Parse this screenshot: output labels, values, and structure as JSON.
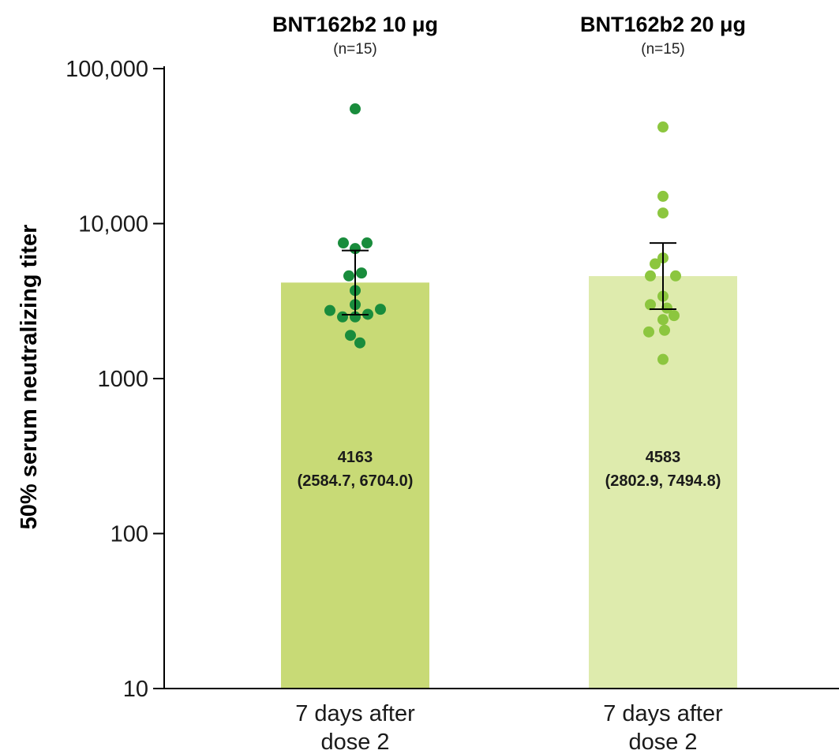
{
  "chart_data": {
    "type": "bar",
    "yscale": "log",
    "ylim": [
      10,
      100000
    ],
    "yticks": [
      {
        "value": 10,
        "label": "10"
      },
      {
        "value": 100,
        "label": "100"
      },
      {
        "value": 1000,
        "label": "1000"
      },
      {
        "value": 10000,
        "label": "10,000"
      },
      {
        "value": 100000,
        "label": "100,000"
      }
    ],
    "ylabel": "50% serum neutralizing titer",
    "grid": false,
    "legend": "none",
    "groups": [
      {
        "title": "BNT162b2 10 μg",
        "n_label": "(n=15)",
        "category_line1": "7 days after",
        "category_line2": "dose 2",
        "value": 4163,
        "ci": [
          2584.7,
          6704.0
        ],
        "value_label": "4163",
        "ci_label": "(2584.7, 6704.0)",
        "bar_color": "#c8da76",
        "point_color": "#198c3c",
        "points": [
          {
            "y": 55000,
            "dx": 0
          },
          {
            "y": 7500,
            "dx": -0.15
          },
          {
            "y": 7500,
            "dx": 0.15
          },
          {
            "y": 6900,
            "dx": 0
          },
          {
            "y": 4800,
            "dx": 0.08
          },
          {
            "y": 4600,
            "dx": -0.08
          },
          {
            "y": 3700,
            "dx": 0
          },
          {
            "y": 3000,
            "dx": 0
          },
          {
            "y": 2800,
            "dx": 0.32
          },
          {
            "y": 2750,
            "dx": -0.32
          },
          {
            "y": 2600,
            "dx": 0.16
          },
          {
            "y": 2500,
            "dx": -0.16
          },
          {
            "y": 2500,
            "dx": 0
          },
          {
            "y": 1900,
            "dx": -0.06
          },
          {
            "y": 1700,
            "dx": 0.06
          }
        ]
      },
      {
        "title": "BNT162b2 20 μg",
        "n_label": "(n=15)",
        "category_line1": "7 days after",
        "category_line2": "dose 2",
        "value": 4583,
        "ci": [
          2802.9,
          7494.8
        ],
        "value_label": "4583",
        "ci_label": "(2802.9, 7494.8)",
        "bar_color": "#deebad",
        "point_color": "#8cc63f",
        "points": [
          {
            "y": 42000,
            "dx": 0
          },
          {
            "y": 15000,
            "dx": 0
          },
          {
            "y": 11700,
            "dx": 0
          },
          {
            "y": 6000,
            "dx": 0
          },
          {
            "y": 5500,
            "dx": -0.1
          },
          {
            "y": 4600,
            "dx": -0.16
          },
          {
            "y": 4600,
            "dx": 0.16
          },
          {
            "y": 3400,
            "dx": 0
          },
          {
            "y": 3000,
            "dx": -0.16
          },
          {
            "y": 2850,
            "dx": 0.05
          },
          {
            "y": 2550,
            "dx": 0.14
          },
          {
            "y": 2400,
            "dx": 0
          },
          {
            "y": 2000,
            "dx": -0.18
          },
          {
            "y": 2050,
            "dx": 0.02
          },
          {
            "y": 1330,
            "dx": 0
          }
        ]
      }
    ]
  }
}
